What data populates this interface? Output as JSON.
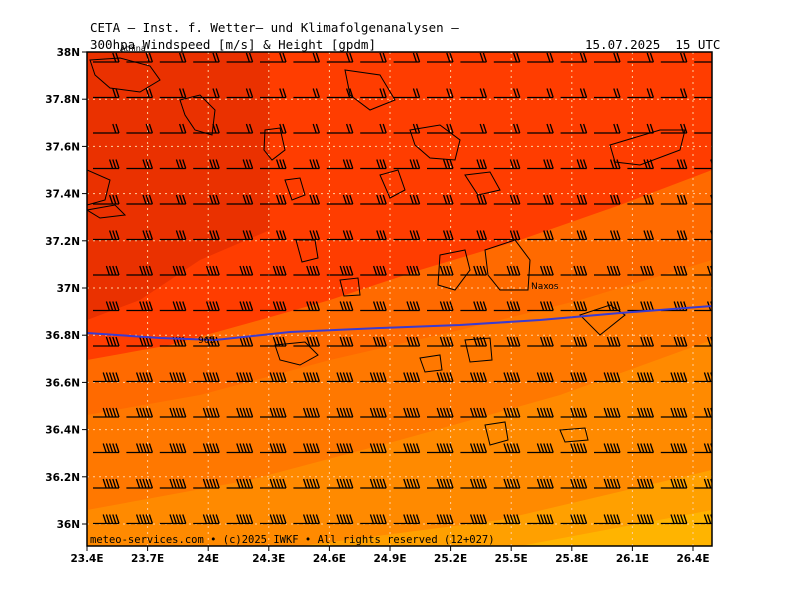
{
  "header": {
    "line1": "CETA — Inst. f. Wetter— und Klimafolgenanalysen —",
    "line2": "300hpa Windspeed [m/s] & Height [gpdm]",
    "datetime": "15.07.2025  15 UTC"
  },
  "map": {
    "lat_labels": [
      "38N",
      "37.8N",
      "37.6N",
      "37.4N",
      "37.2N",
      "37N",
      "36.8N",
      "36.6N",
      "36.4N",
      "36.2N",
      "36N"
    ],
    "lon_labels": [
      "23.4E",
      "23.7E",
      "24E",
      "24.3E",
      "24.6E",
      "24.9E",
      "25.2E",
      "25.5E",
      "25.8E",
      "26.1E",
      "26.4E"
    ],
    "contour_label": "965",
    "place_labels": [
      "Naxos",
      "Athina"
    ],
    "footer": "meteo-services.com • (c)2025 IWKF • All rights reserved (12+027)",
    "colors": {
      "band_dark": "#e83000",
      "band_red": "#ff3d00",
      "band_orange1": "#ff6a00",
      "band_orange2": "#ff8a00",
      "band_orange3": "#ffa000",
      "band_yellow": "#ffb400",
      "height_contour": "#3a3ad0"
    }
  }
}
